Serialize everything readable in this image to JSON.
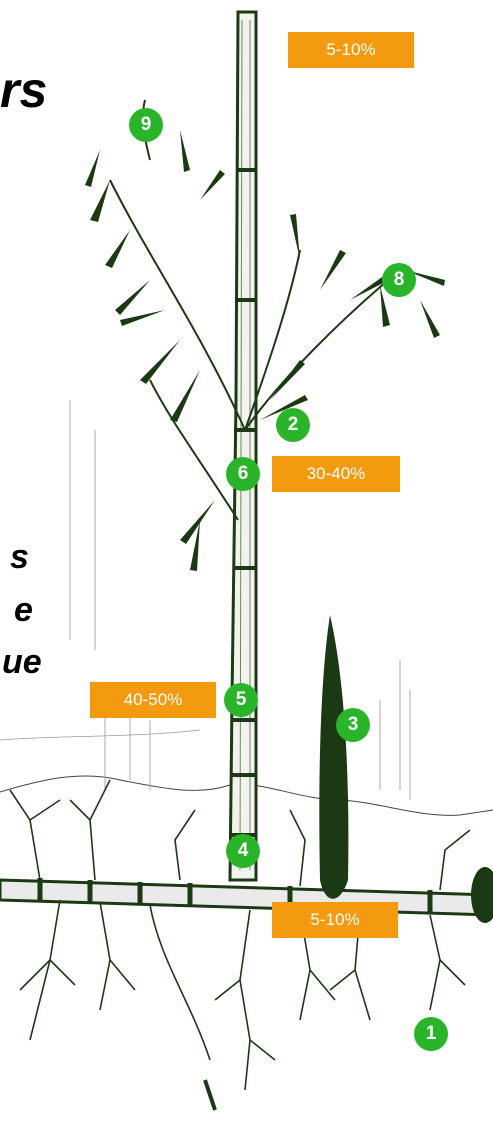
{
  "fragments": {
    "top_right": "rs",
    "mid_1": "s",
    "mid_2": "e",
    "mid_3": "ue"
  },
  "percent_labels": {
    "top": "5-10%",
    "middle": "30-40%",
    "lower": "40-50%",
    "base": "5-10%"
  },
  "markers": [
    "1",
    "2",
    "3",
    "4",
    "5",
    "6",
    "8",
    "9"
  ],
  "colors": {
    "badge": "#f39a0f",
    "marker": "#2ab42a",
    "ink": "#1b3a14"
  }
}
